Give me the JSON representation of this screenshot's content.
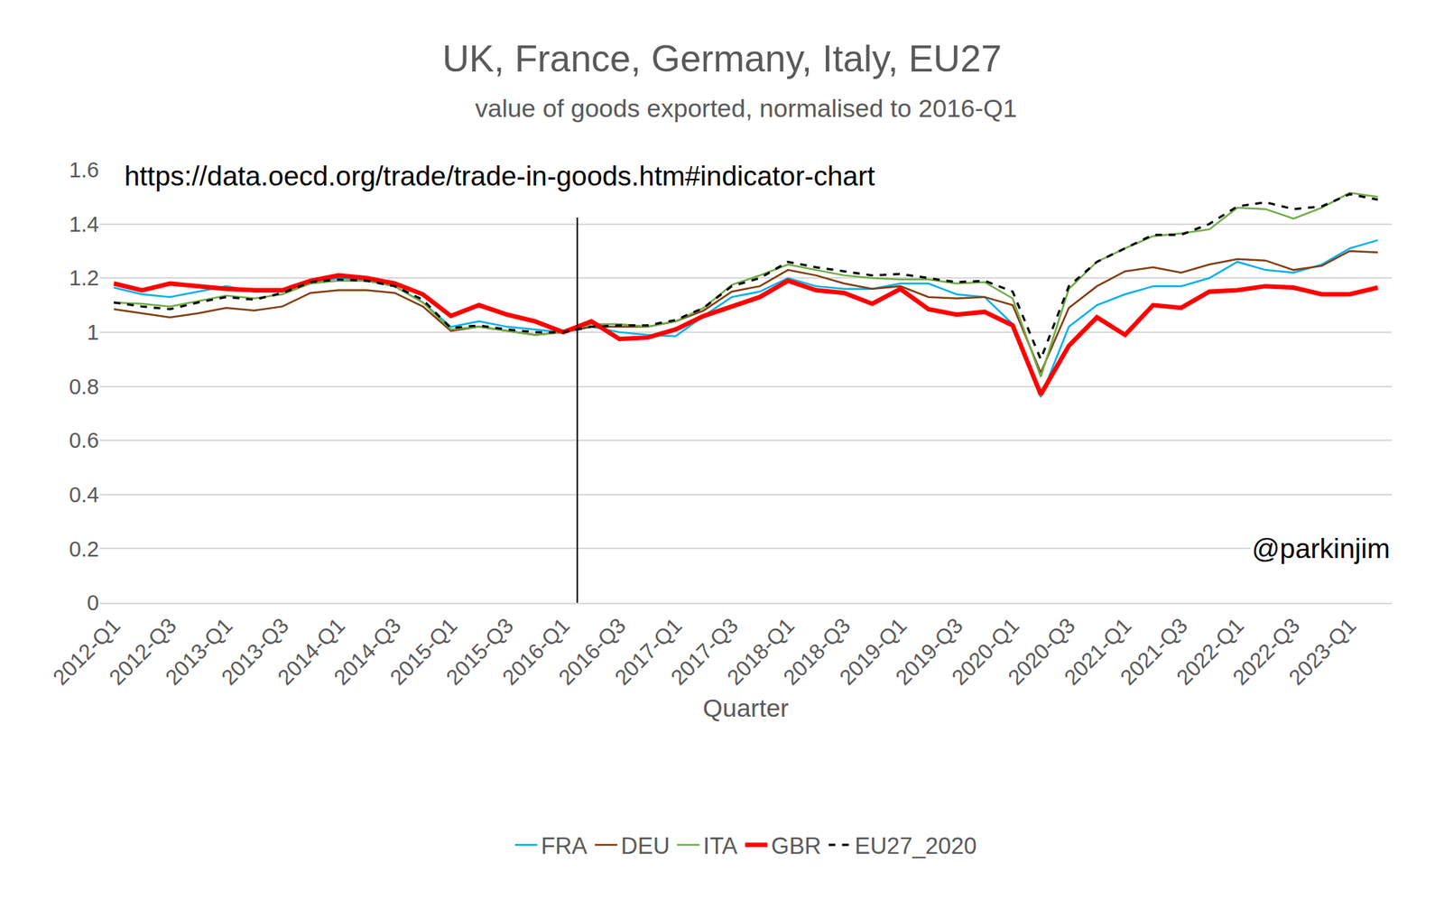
{
  "chart_data": {
    "type": "line",
    "title": "UK, France, Germany, Italy, EU27",
    "subtitle": "value of goods exported, normalised to 2016-Q1",
    "x_label": "Quarter",
    "source": "https://data.oecd.org/trade/trade-in-goods.htm#indicator-chart",
    "credit": "@parkinjim",
    "vertical_line": "2016-Q1",
    "categories": [
      "2012-Q1",
      null,
      "2012-Q3",
      null,
      "2013-Q1",
      null,
      "2013-Q3",
      null,
      "2014-Q1",
      null,
      "2014-Q3",
      null,
      "2015-Q1",
      null,
      "2015-Q3",
      null,
      "2016-Q1",
      null,
      "2016-Q3",
      null,
      "2017-Q1",
      null,
      "2017-Q3",
      null,
      "2018-Q1",
      null,
      "2018-Q3",
      null,
      "2019-Q1",
      null,
      "2019-Q3",
      null,
      "2020-Q1",
      null,
      "2020-Q3",
      null,
      "2021-Q1",
      null,
      "2021-Q3",
      null,
      "2022-Q1",
      null,
      "2022-Q3",
      null,
      "2023-Q1",
      null
    ],
    "series": [
      {
        "name": "FRA",
        "color": "#00b0f0",
        "line_style": "solid",
        "values": [
          1.165,
          1.14,
          1.13,
          1.15,
          1.17,
          1.15,
          1.15,
          1.18,
          1.2,
          1.19,
          1.17,
          1.11,
          1.02,
          1.04,
          1.02,
          1.01,
          1.0,
          1.02,
          1.0,
          0.99,
          0.985,
          1.06,
          1.13,
          1.15,
          1.2,
          1.17,
          1.16,
          1.16,
          1.18,
          1.18,
          1.14,
          1.13,
          1.03,
          0.76,
          1.02,
          1.1,
          1.14,
          1.17,
          1.17,
          1.2,
          1.26,
          1.23,
          1.22,
          1.25,
          1.31,
          1.34
        ]
      },
      {
        "name": "DEU",
        "color": "#843c0c",
        "line_style": "solid",
        "values": [
          1.085,
          1.07,
          1.055,
          1.07,
          1.09,
          1.08,
          1.095,
          1.145,
          1.155,
          1.155,
          1.145,
          1.095,
          1.005,
          1.02,
          1.005,
          0.99,
          1.0,
          1.02,
          1.02,
          1.02,
          1.04,
          1.08,
          1.15,
          1.17,
          1.23,
          1.21,
          1.18,
          1.16,
          1.17,
          1.13,
          1.125,
          1.13,
          1.1,
          0.85,
          1.09,
          1.17,
          1.225,
          1.24,
          1.22,
          1.25,
          1.27,
          1.265,
          1.23,
          1.245,
          1.3,
          1.295
        ]
      },
      {
        "name": "ITA",
        "color": "#70ad47",
        "line_style": "solid",
        "values": [
          1.11,
          1.105,
          1.095,
          1.115,
          1.135,
          1.125,
          1.14,
          1.18,
          1.19,
          1.19,
          1.17,
          1.11,
          1.01,
          1.02,
          1.005,
          0.99,
          1.0,
          1.03,
          1.03,
          1.02,
          1.04,
          1.09,
          1.175,
          1.21,
          1.25,
          1.23,
          1.21,
          1.2,
          1.195,
          1.195,
          1.18,
          1.185,
          1.125,
          0.835,
          1.16,
          1.26,
          1.31,
          1.355,
          1.365,
          1.38,
          1.46,
          1.455,
          1.42,
          1.46,
          1.515,
          1.5
        ]
      },
      {
        "name": "GBR",
        "color": "#ff0000",
        "line_style": "thick",
        "values": [
          1.18,
          1.155,
          1.18,
          1.17,
          1.16,
          1.155,
          1.155,
          1.19,
          1.21,
          1.2,
          1.18,
          1.14,
          1.06,
          1.1,
          1.065,
          1.04,
          1.0,
          1.04,
          0.975,
          0.98,
          1.01,
          1.06,
          1.095,
          1.13,
          1.19,
          1.155,
          1.145,
          1.105,
          1.16,
          1.085,
          1.065,
          1.075,
          1.025,
          0.77,
          0.95,
          1.055,
          0.99,
          1.1,
          1.09,
          1.15,
          1.155,
          1.17,
          1.165,
          1.14,
          1.14,
          1.165
        ]
      },
      {
        "name": "EU27_2020",
        "color": "#000000",
        "line_style": "dashed",
        "values": [
          1.11,
          1.095,
          1.085,
          1.11,
          1.13,
          1.12,
          1.145,
          1.185,
          1.195,
          1.19,
          1.17,
          1.12,
          1.015,
          1.025,
          1.01,
          1.0,
          1.0,
          1.02,
          1.025,
          1.025,
          1.045,
          1.09,
          1.17,
          1.2,
          1.26,
          1.24,
          1.225,
          1.21,
          1.215,
          1.2,
          1.185,
          1.19,
          1.15,
          0.9,
          1.17,
          1.26,
          1.31,
          1.36,
          1.36,
          1.4,
          1.465,
          1.48,
          1.455,
          1.465,
          1.51,
          1.49
        ]
      }
    ],
    "ylim": [
      0,
      1.6
    ],
    "yticks": [
      0,
      0.2,
      0.4,
      0.6,
      0.8,
      1,
      1.2,
      1.4,
      1.6
    ],
    "grid": true,
    "legend": "bottom"
  }
}
